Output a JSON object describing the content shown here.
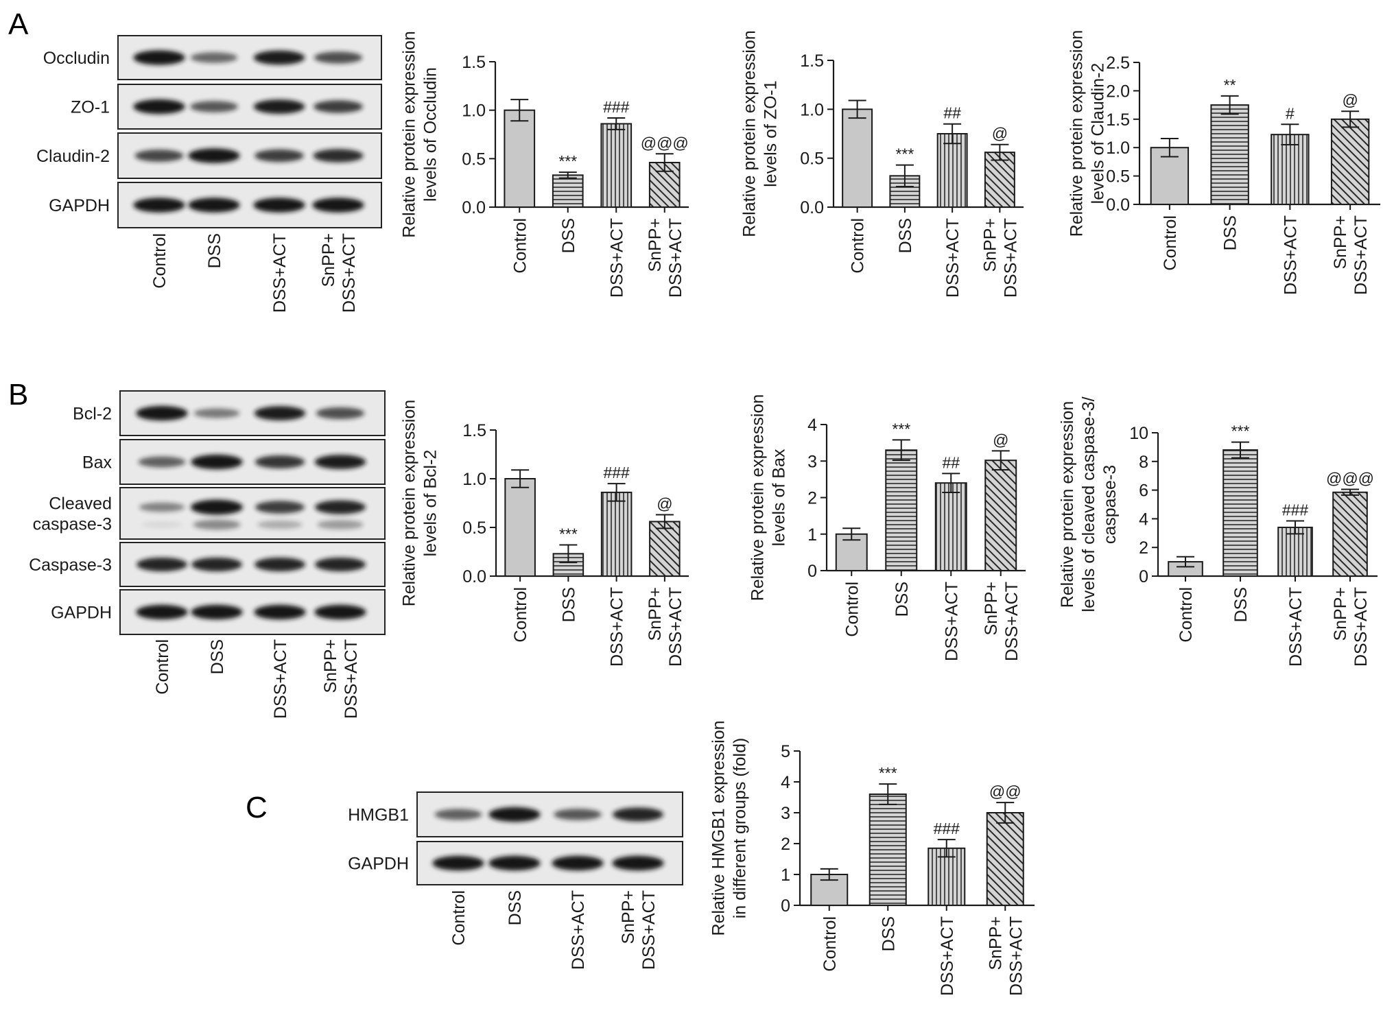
{
  "panels": {
    "A": {
      "letter": "A",
      "lanes": [
        "Control",
        "DSS",
        "DSS+ACT",
        "SnPP+\nDSS+ACT"
      ],
      "blot_rows": [
        "Occludin",
        "ZO-1",
        "Claudin-2",
        "GAPDH"
      ]
    },
    "B": {
      "letter": "B",
      "lanes": [
        "Control",
        "DSS",
        "DSS+ACT",
        "SnPP+\nDSS+ACT"
      ],
      "blot_rows": [
        "Bcl-2",
        "Bax",
        "Cleaved\ncaspase-3",
        "Caspase-3",
        "GAPDH"
      ]
    },
    "C": {
      "letter": "C",
      "lanes": [
        "Control",
        "DSS",
        "DSS+ACT",
        "SnPP+\nDSS+ACT"
      ],
      "blot_rows": [
        "HMGB1",
        "GAPDH"
      ]
    }
  },
  "blot_intensity": {
    "Occludin": [
      0.95,
      0.45,
      0.9,
      0.6
    ],
    "ZO-1": [
      0.95,
      0.55,
      0.9,
      0.7
    ],
    "Claudin-2": [
      0.65,
      0.95,
      0.7,
      0.8
    ],
    "GAPDH": [
      0.95,
      0.95,
      0.95,
      0.95
    ],
    "Bcl-2": [
      0.95,
      0.35,
      0.9,
      0.6
    ],
    "Bax": [
      0.5,
      0.95,
      0.75,
      0.9
    ],
    "Cleaved caspase-3": [
      0.3,
      1.0,
      0.7,
      0.85
    ],
    "Caspase-3": [
      0.85,
      0.85,
      0.85,
      0.85
    ],
    "HMGB1": [
      0.5,
      0.95,
      0.55,
      0.85
    ]
  },
  "style": {
    "bar_fill": "#c8c8c8",
    "axis_color": "#1a1a1a",
    "blot_bg": "#e9e9e9",
    "band_color": "#141414"
  },
  "chart_data": [
    {
      "id": "occludin",
      "panel": "A",
      "type": "bar",
      "categories": [
        "Control",
        "DSS",
        "DSS+ACT",
        "SnPP+\nDSS+ACT"
      ],
      "values": [
        1.0,
        0.33,
        0.86,
        0.46
      ],
      "errors": [
        0.11,
        0.03,
        0.06,
        0.09
      ],
      "annotations": [
        "",
        "***",
        "###",
        "@@@"
      ],
      "ylabel": "Relative protein expression\nlevels of Occludin",
      "ylim": [
        0,
        1.5
      ],
      "yticks": [
        "0.0",
        "0.5",
        "1.0",
        "1.5"
      ],
      "patterns": [
        "solid",
        "hlines",
        "vlines",
        "diag"
      ]
    },
    {
      "id": "zo1",
      "panel": "A",
      "type": "bar",
      "categories": [
        "Control",
        "DSS",
        "DSS+ACT",
        "SnPP+\nDSS+ACT"
      ],
      "values": [
        1.0,
        0.32,
        0.75,
        0.56
      ],
      "errors": [
        0.09,
        0.11,
        0.1,
        0.08
      ],
      "annotations": [
        "",
        "***",
        "##",
        "@"
      ],
      "ylabel": "Relative protein expression\nlevels of ZO-1",
      "ylim": [
        0,
        1.5
      ],
      "yticks": [
        "0.0",
        "0.5",
        "1.0",
        "1.5"
      ],
      "patterns": [
        "solid",
        "hlines",
        "vlines",
        "diag"
      ]
    },
    {
      "id": "claudin2",
      "panel": "A",
      "type": "bar",
      "categories": [
        "Control",
        "DSS",
        "DSS+ACT",
        "SnPP+\nDSS+ACT"
      ],
      "values": [
        1.0,
        1.75,
        1.23,
        1.5
      ],
      "errors": [
        0.16,
        0.16,
        0.18,
        0.14
      ],
      "annotations": [
        "",
        "**",
        "#",
        "@"
      ],
      "ylabel": "Relative protein expression\nlevels of Claudin-2",
      "ylim": [
        0,
        2.5
      ],
      "yticks": [
        "0.0",
        "0.5",
        "1.0",
        "1.5",
        "2.0",
        "2.5"
      ],
      "patterns": [
        "solid",
        "hlines",
        "vlines",
        "diag"
      ]
    },
    {
      "id": "bcl2",
      "panel": "B",
      "type": "bar",
      "categories": [
        "Control",
        "DSS",
        "DSS+ACT",
        "SnPP+\nDSS+ACT"
      ],
      "values": [
        1.0,
        0.23,
        0.86,
        0.56
      ],
      "errors": [
        0.09,
        0.09,
        0.09,
        0.07
      ],
      "annotations": [
        "",
        "***",
        "###",
        "@"
      ],
      "ylabel": "Relative protein expression\nlevels of Bcl-2",
      "ylim": [
        0,
        1.5
      ],
      "yticks": [
        "0.0",
        "0.5",
        "1.0",
        "1.5"
      ],
      "patterns": [
        "solid",
        "hlines",
        "vlines",
        "diag"
      ]
    },
    {
      "id": "bax",
      "panel": "B",
      "type": "bar",
      "categories": [
        "Control",
        "DSS",
        "DSS+ACT",
        "SnPP+\nDSS+ACT"
      ],
      "values": [
        1.0,
        3.3,
        2.4,
        3.02
      ],
      "errors": [
        0.16,
        0.28,
        0.26,
        0.26
      ],
      "annotations": [
        "",
        "***",
        "##",
        "@"
      ],
      "ylabel": "Relative protein expression\nlevels of Bax",
      "ylim": [
        0,
        4
      ],
      "yticks": [
        "0",
        "1",
        "2",
        "3",
        "4"
      ],
      "patterns": [
        "solid",
        "hlines",
        "vlines",
        "diag"
      ]
    },
    {
      "id": "caspase3",
      "panel": "B",
      "type": "bar",
      "categories": [
        "Control",
        "DSS",
        "DSS+ACT",
        "SnPP+\nDSS+ACT"
      ],
      "values": [
        1.0,
        8.8,
        3.4,
        5.85
      ],
      "errors": [
        0.35,
        0.55,
        0.45,
        0.2
      ],
      "annotations": [
        "",
        "***",
        "###",
        "@@@"
      ],
      "ylabel": "Relative protein expression\nlevels of cleaved caspase-3/\ncaspase-3",
      "ylim": [
        0,
        10
      ],
      "yticks": [
        "0",
        "2",
        "4",
        "6",
        "8",
        "10"
      ],
      "patterns": [
        "solid",
        "hlines",
        "vlines",
        "diag"
      ]
    },
    {
      "id": "hmgb1",
      "panel": "C",
      "type": "bar",
      "categories": [
        "Control",
        "DSS",
        "DSS+ACT",
        "SnPP+\nDSS+ACT"
      ],
      "values": [
        1.0,
        3.6,
        1.85,
        3.0
      ],
      "errors": [
        0.18,
        0.33,
        0.28,
        0.33
      ],
      "annotations": [
        "",
        "***",
        "###",
        "@@"
      ],
      "ylabel": "Relative HMGB1 expression\nin different groups (fold)",
      "ylim": [
        0,
        5
      ],
      "yticks": [
        "0",
        "1",
        "2",
        "3",
        "4",
        "5"
      ],
      "patterns": [
        "solid",
        "hlines",
        "vlines",
        "diag"
      ]
    }
  ]
}
